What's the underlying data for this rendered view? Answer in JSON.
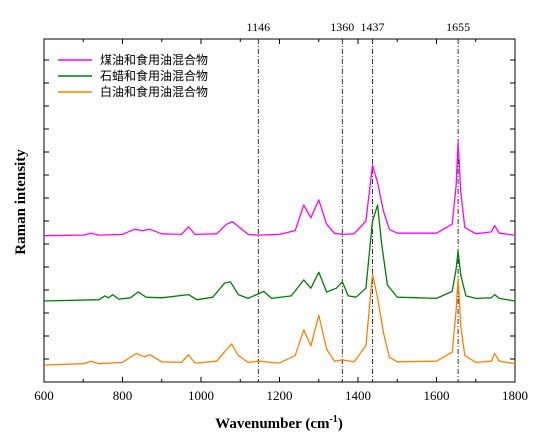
{
  "chart_data": {
    "type": "line",
    "xlabel": "Wavenumber (cm",
    "xlabel_sup": "-1",
    "xlabel_close": ")",
    "ylabel": "Raman intensity",
    "xlim": [
      600,
      1800
    ],
    "x_ticks": [
      "600",
      "800",
      "1000",
      "1200",
      "1400",
      "1600",
      "1800"
    ],
    "grid": false,
    "legend_position": "top-left",
    "reference_lines": [
      {
        "value": 1146,
        "label": "1146"
      },
      {
        "value": 1360,
        "label": "1360"
      },
      {
        "value": 1437,
        "label": "1437"
      },
      {
        "value": 1655,
        "label": "1655"
      }
    ],
    "series": [
      {
        "name": "煤油和食用油混合物",
        "color": "#ff00ff",
        "offset": 2.0,
        "points": [
          [
            600,
            0.02
          ],
          [
            700,
            0.03
          ],
          [
            720,
            0.06
          ],
          [
            740,
            0.03
          ],
          [
            800,
            0.04
          ],
          [
            830,
            0.12
          ],
          [
            850,
            0.1
          ],
          [
            870,
            0.12
          ],
          [
            900,
            0.05
          ],
          [
            950,
            0.04
          ],
          [
            968,
            0.16
          ],
          [
            985,
            0.04
          ],
          [
            1040,
            0.05
          ],
          [
            1065,
            0.2
          ],
          [
            1080,
            0.24
          ],
          [
            1100,
            0.14
          ],
          [
            1120,
            0.04
          ],
          [
            1146,
            0.03
          ],
          [
            1200,
            0.04
          ],
          [
            1240,
            0.1
          ],
          [
            1262,
            0.5
          ],
          [
            1280,
            0.3
          ],
          [
            1300,
            0.58
          ],
          [
            1320,
            0.2
          ],
          [
            1340,
            0.06
          ],
          [
            1360,
            0.04
          ],
          [
            1390,
            0.05
          ],
          [
            1420,
            0.25
          ],
          [
            1437,
            1.12
          ],
          [
            1450,
            0.85
          ],
          [
            1465,
            0.4
          ],
          [
            1480,
            0.12
          ],
          [
            1500,
            0.06
          ],
          [
            1600,
            0.06
          ],
          [
            1640,
            0.2
          ],
          [
            1650,
            0.8
          ],
          [
            1655,
            1.48
          ],
          [
            1662,
            0.7
          ],
          [
            1672,
            0.15
          ],
          [
            1700,
            0.05
          ],
          [
            1740,
            0.08
          ],
          [
            1748,
            0.18
          ],
          [
            1760,
            0.06
          ],
          [
            1800,
            0.03
          ]
        ]
      },
      {
        "name": "石蜡和食用油混合物",
        "color": "#007f00",
        "offset": 1.0,
        "points": [
          [
            600,
            0.0
          ],
          [
            740,
            0.02
          ],
          [
            755,
            0.08
          ],
          [
            765,
            0.05
          ],
          [
            775,
            0.1
          ],
          [
            790,
            0.03
          ],
          [
            820,
            0.05
          ],
          [
            840,
            0.14
          ],
          [
            860,
            0.06
          ],
          [
            900,
            0.05
          ],
          [
            968,
            0.1
          ],
          [
            990,
            0.02
          ],
          [
            1030,
            0.06
          ],
          [
            1060,
            0.28
          ],
          [
            1075,
            0.3
          ],
          [
            1095,
            0.1
          ],
          [
            1120,
            0.04
          ],
          [
            1160,
            0.15
          ],
          [
            1180,
            0.04
          ],
          [
            1230,
            0.08
          ],
          [
            1262,
            0.33
          ],
          [
            1280,
            0.2
          ],
          [
            1300,
            0.45
          ],
          [
            1320,
            0.14
          ],
          [
            1345,
            0.2
          ],
          [
            1360,
            0.3
          ],
          [
            1375,
            0.08
          ],
          [
            1395,
            0.06
          ],
          [
            1420,
            0.2
          ],
          [
            1437,
            1.25
          ],
          [
            1450,
            1.5
          ],
          [
            1460,
            0.9
          ],
          [
            1475,
            0.25
          ],
          [
            1500,
            0.06
          ],
          [
            1600,
            0.04
          ],
          [
            1640,
            0.15
          ],
          [
            1650,
            0.5
          ],
          [
            1655,
            0.78
          ],
          [
            1662,
            0.4
          ],
          [
            1675,
            0.08
          ],
          [
            1700,
            0.04
          ],
          [
            1740,
            0.05
          ],
          [
            1748,
            0.1
          ],
          [
            1760,
            0.04
          ],
          [
            1800,
            0.0
          ]
        ]
      },
      {
        "name": "白油和食用油混合物",
        "color": "#ff8000",
        "offset": 0.0,
        "points": [
          [
            600,
            0.0
          ],
          [
            700,
            0.02
          ],
          [
            720,
            0.06
          ],
          [
            740,
            0.02
          ],
          [
            800,
            0.04
          ],
          [
            835,
            0.18
          ],
          [
            855,
            0.13
          ],
          [
            870,
            0.16
          ],
          [
            900,
            0.05
          ],
          [
            950,
            0.04
          ],
          [
            968,
            0.16
          ],
          [
            985,
            0.03
          ],
          [
            1040,
            0.06
          ],
          [
            1062,
            0.22
          ],
          [
            1078,
            0.33
          ],
          [
            1095,
            0.15
          ],
          [
            1120,
            0.04
          ],
          [
            1146,
            0.06
          ],
          [
            1200,
            0.03
          ],
          [
            1240,
            0.15
          ],
          [
            1262,
            0.55
          ],
          [
            1280,
            0.3
          ],
          [
            1300,
            0.78
          ],
          [
            1320,
            0.25
          ],
          [
            1340,
            0.06
          ],
          [
            1360,
            0.08
          ],
          [
            1390,
            0.05
          ],
          [
            1420,
            0.3
          ],
          [
            1437,
            1.42
          ],
          [
            1450,
            1.05
          ],
          [
            1465,
            0.5
          ],
          [
            1480,
            0.12
          ],
          [
            1500,
            0.05
          ],
          [
            1600,
            0.06
          ],
          [
            1640,
            0.2
          ],
          [
            1650,
            0.85
          ],
          [
            1655,
            1.35
          ],
          [
            1662,
            0.6
          ],
          [
            1672,
            0.15
          ],
          [
            1700,
            0.04
          ],
          [
            1740,
            0.06
          ],
          [
            1748,
            0.18
          ],
          [
            1760,
            0.06
          ],
          [
            1800,
            0.02
          ]
        ]
      }
    ]
  }
}
